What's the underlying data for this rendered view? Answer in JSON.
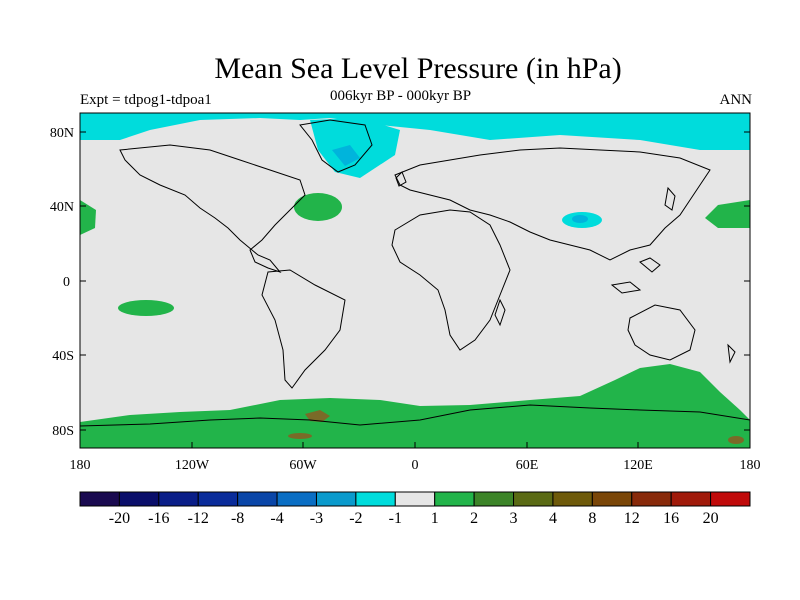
{
  "title": "Mean Sea Level Pressure (in hPa)",
  "subtitle": "006kyr BP - 000kyr BP",
  "left_label": "Expt = tdpog1-tdpoa1",
  "right_label": "ANN",
  "colors": {
    "ocean_land_bg": "#e6e6e6",
    "neg_1": "#00dcdc",
    "neg_2": "#00b4dc",
    "pos_1": "#22b44a",
    "pos_3": "#7a6a28",
    "coast": "#000000"
  },
  "axes": {
    "y_ticks": [
      "80N",
      "40N",
      "0",
      "40S",
      "80S"
    ],
    "x_ticks": [
      "180",
      "120W",
      "60W",
      "0",
      "60E",
      "120E",
      "180"
    ]
  },
  "colorbar": {
    "colors": [
      "#1a0a50",
      "#0a0e6a",
      "#0a1e88",
      "#0a2c9a",
      "#0a46a8",
      "#0a6ec4",
      "#0a9acc",
      "#00dcdc",
      "#e6e6e6",
      "#22b44a",
      "#3c8428",
      "#5a6a14",
      "#6e5a0a",
      "#7a4608",
      "#882a0a",
      "#a01a0a",
      "#c00a0a"
    ],
    "labels": [
      "-20",
      "-16",
      "-12",
      "-8",
      "-4",
      "-3",
      "-2",
      "-1",
      "1",
      "2",
      "3",
      "4",
      "8",
      "12",
      "16",
      "20"
    ]
  }
}
